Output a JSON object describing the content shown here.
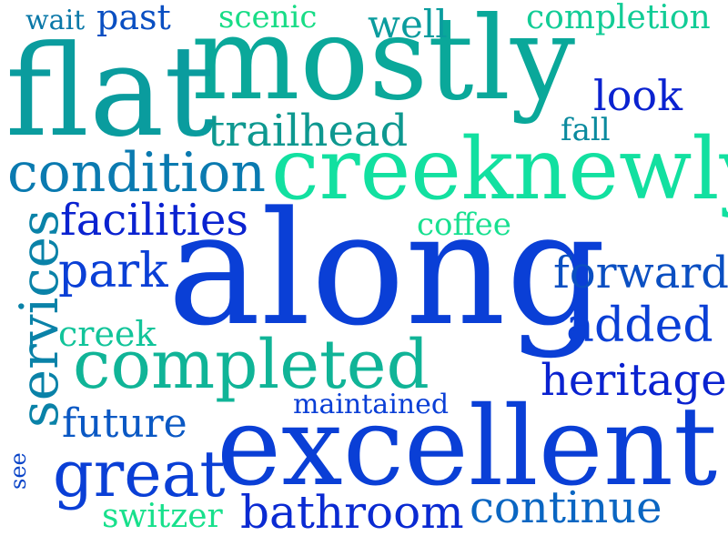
{
  "words": [
    {
      "key": "along",
      "text": "along",
      "color": "#0a3fd6"
    },
    {
      "key": "mostly",
      "text": "mostly",
      "color": "#0aa89a"
    },
    {
      "key": "flat",
      "text": "flat",
      "color": "#0a9c9e"
    },
    {
      "key": "excellent",
      "text": "excellent",
      "color": "#0a3fd6"
    },
    {
      "key": "creeknewly",
      "text": "creeknewly",
      "color": "#12e0a0"
    },
    {
      "key": "completed",
      "text": "completed",
      "color": "#10b497"
    },
    {
      "key": "condition",
      "text": "condition",
      "color": "#0a7ab0"
    },
    {
      "key": "great",
      "text": "great",
      "color": "#0a3fd6"
    },
    {
      "key": "services",
      "text": "services",
      "color": "#0a82a8"
    },
    {
      "key": "heritage",
      "text": "heritage",
      "color": "#0a22d0"
    },
    {
      "key": "facilities",
      "text": "facilities",
      "color": "#0a22d0"
    },
    {
      "key": "forward",
      "text": "forward",
      "color": "#0a4fc2"
    },
    {
      "key": "trailhead",
      "text": "trailhead",
      "color": "#0e9890"
    },
    {
      "key": "bathroom",
      "text": "bathroom",
      "color": "#0a2ad2"
    },
    {
      "key": "continue",
      "text": "continue",
      "color": "#0a66c2"
    },
    {
      "key": "completion",
      "text": "completion",
      "color": "#12cc96"
    },
    {
      "key": "added",
      "text": "added",
      "color": "#0a3fd6"
    },
    {
      "key": "park",
      "text": "park",
      "color": "#0a3fd6"
    },
    {
      "key": "future",
      "text": "future",
      "color": "#0a58c4"
    },
    {
      "key": "look",
      "text": "look",
      "color": "#0a22d0"
    },
    {
      "key": "well",
      "text": "well",
      "color": "#0a9c9e"
    },
    {
      "key": "past",
      "text": "past",
      "color": "#0a4fc2"
    },
    {
      "key": "scenic",
      "text": "scenic",
      "color": "#18dc86"
    },
    {
      "key": "coffee",
      "text": "coffee",
      "color": "#18e090"
    },
    {
      "key": "maintained",
      "text": "maintained",
      "color": "#0a3fd6"
    },
    {
      "key": "switzer",
      "text": "switzer",
      "color": "#18e08c"
    },
    {
      "key": "creek",
      "text": "creek",
      "color": "#12c49a"
    },
    {
      "key": "wait",
      "text": "wait",
      "color": "#0a78a8"
    },
    {
      "key": "fall",
      "text": "fall",
      "color": "#0a8a9e"
    },
    {
      "key": "see",
      "text": "see",
      "color": "#0a44c8"
    }
  ]
}
